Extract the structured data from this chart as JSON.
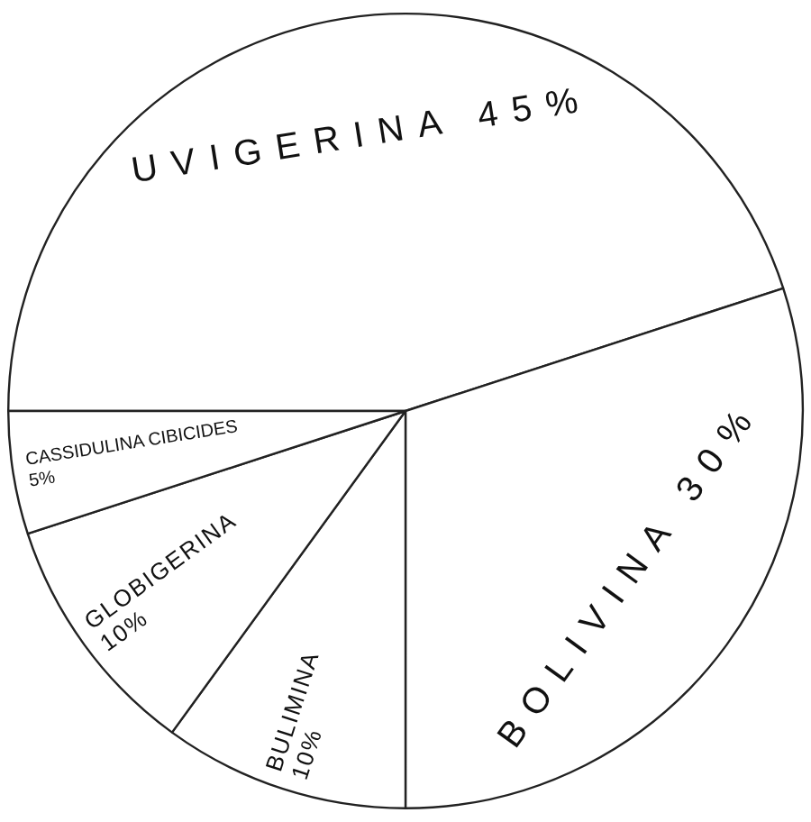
{
  "chart_data": {
    "type": "pie",
    "categories": [
      "UVIGERINA",
      "BOLIVINA",
      "BULIMINA",
      "GLOBIGERINA",
      "CASSIDULINA CIBICIDES"
    ],
    "values": [
      45,
      30,
      10,
      10,
      5
    ],
    "value_labels": [
      "45%",
      "30%",
      "10%",
      "10%",
      "5%"
    ],
    "colors": [
      "#ffffff",
      "#ffffff",
      "#ffffff",
      "#ffffff",
      "#ffffff"
    ]
  }
}
